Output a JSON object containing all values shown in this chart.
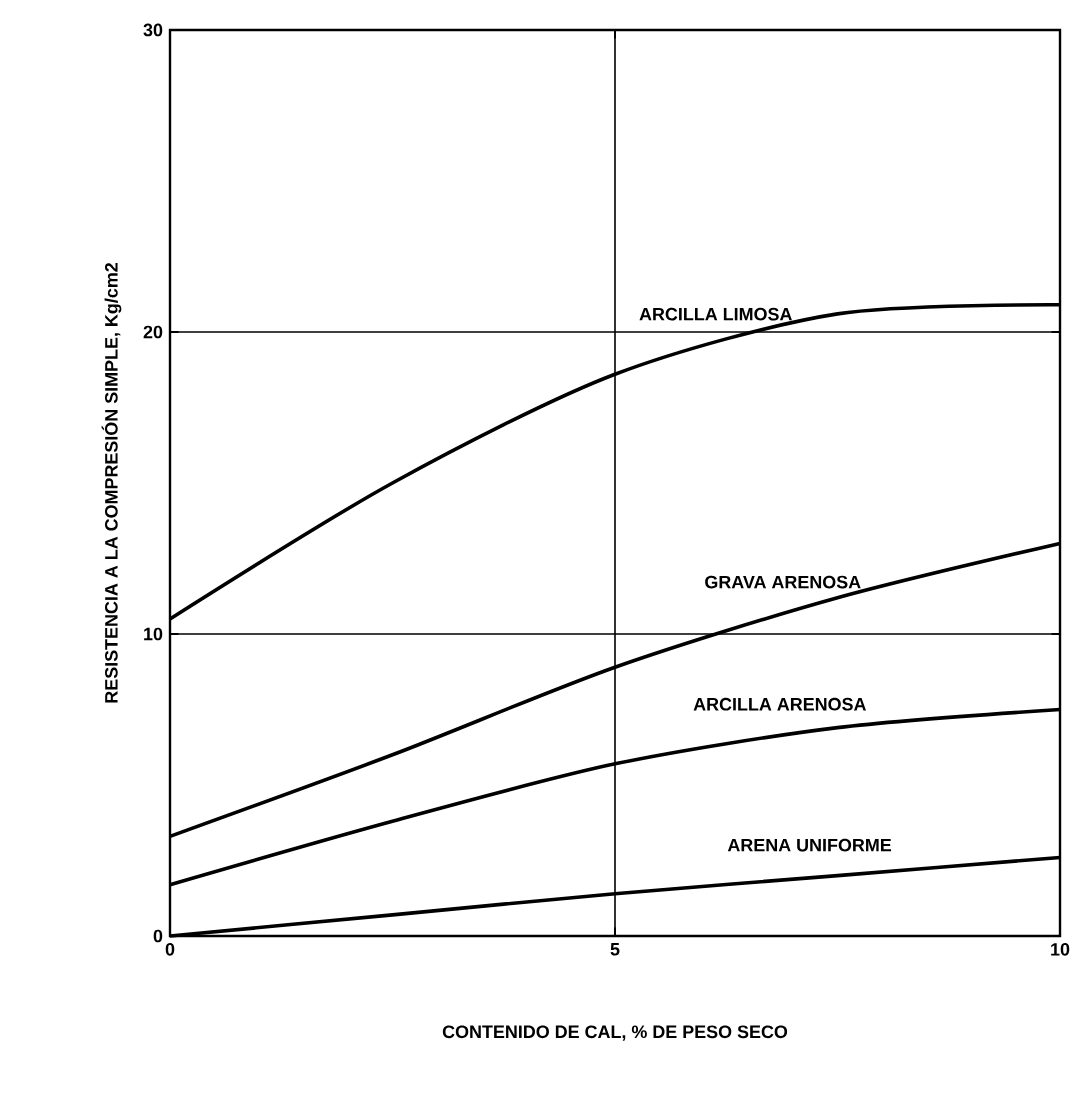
{
  "chart_data": {
    "type": "line",
    "xlabel": "CONTENIDO DE CAL, % DE PESO SECO",
    "ylabel": "RESISTENCIA A LA COMPRESIÓN SIMPLE, Kg/cm2",
    "x": [
      0,
      2.5,
      5,
      7.5,
      10
    ],
    "series": [
      {
        "name": "ARCILLA LIMOSA",
        "color": "#000000",
        "values": [
          10.5,
          15.0,
          18.6,
          20.6,
          20.9
        ]
      },
      {
        "name": "GRAVA ARENOSA",
        "color": "#000000",
        "values": [
          3.3,
          6.0,
          8.9,
          11.2,
          13.0
        ]
      },
      {
        "name": "ARCILLA ARENOSA",
        "color": "#000000",
        "values": [
          1.7,
          3.8,
          5.7,
          6.9,
          7.5
        ]
      },
      {
        "name": "ARENA UNIFORME",
        "color": "#000000",
        "values": [
          0,
          0.7,
          1.4,
          2.0,
          2.6
        ]
      }
    ],
    "xlim": [
      0,
      10
    ],
    "ylim": [
      0,
      30
    ],
    "xticks": [
      0,
      5,
      10
    ],
    "yticks": [
      0,
      10,
      20,
      30
    ],
    "grid": true
  }
}
